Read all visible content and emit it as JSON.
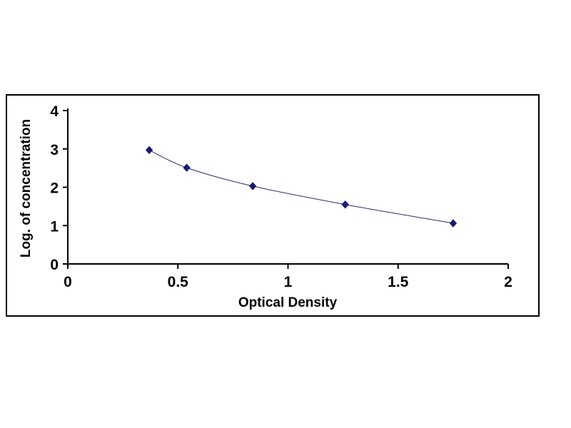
{
  "chart_data": {
    "type": "line",
    "title": "",
    "xlabel": "Optical Density",
    "ylabel": "Log. of concentration",
    "x": [
      0.37,
      0.54,
      0.84,
      1.26,
      1.75
    ],
    "y": [
      2.97,
      2.51,
      2.03,
      1.55,
      1.06
    ],
    "xlim": [
      0,
      2
    ],
    "ylim": [
      0,
      4
    ],
    "xticks": [
      "0",
      "0.5",
      "1",
      "1.5",
      "2"
    ],
    "xtick_values": [
      0,
      0.5,
      1,
      1.5,
      2
    ],
    "yticks": [
      "0",
      "1",
      "2",
      "3",
      "4"
    ],
    "ytick_values": [
      0,
      1,
      2,
      3,
      4
    ],
    "grid": false,
    "legend": null,
    "marker": "diamond",
    "colors": {
      "line": "#2a2a6a",
      "marker": "#1b1b6f",
      "axis": "#000000",
      "text": "#000000",
      "frame_border": "#000000",
      "background": "#ffffff"
    }
  }
}
